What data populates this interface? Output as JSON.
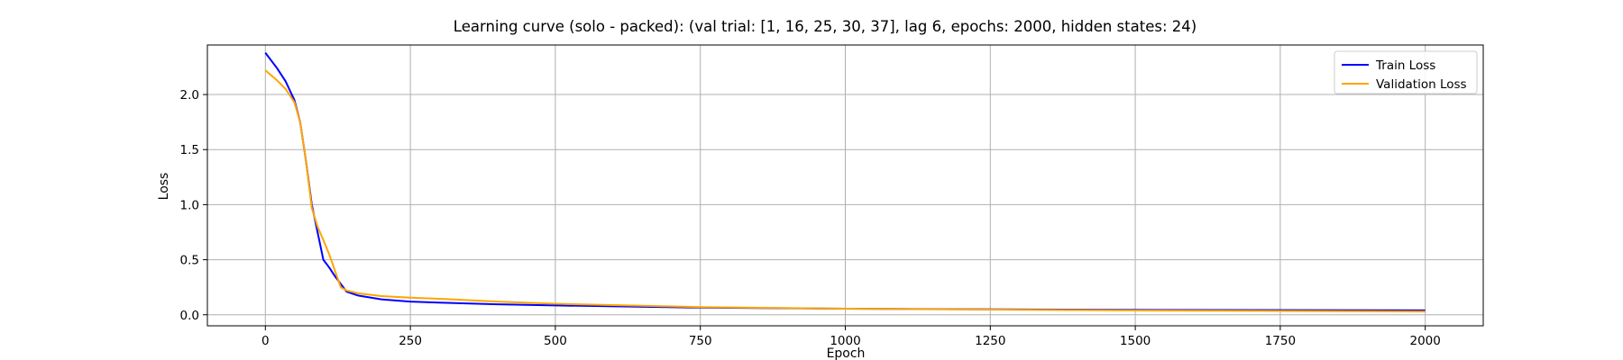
{
  "chart_data": {
    "type": "line",
    "title": "Learning curve (solo - packed): (val trial: [1, 16, 25, 30, 37], lag 6, epochs: 2000, hidden states: 24)",
    "xlabel": "Epoch",
    "ylabel": "Loss",
    "xlim": [
      -100,
      2100
    ],
    "ylim": [
      -0.1,
      2.45
    ],
    "xticks": [
      0,
      250,
      500,
      750,
      1000,
      1250,
      1500,
      1750,
      2000
    ],
    "xtick_labels": [
      "0",
      "250",
      "500",
      "750",
      "1000",
      "1250",
      "1500",
      "1750",
      "2000"
    ],
    "yticks": [
      0.0,
      0.5,
      1.0,
      1.5,
      2.0
    ],
    "ytick_labels": [
      "0.0",
      "0.5",
      "1.0",
      "1.5",
      "2.0"
    ],
    "grid": true,
    "legend_position": "top-right",
    "series": [
      {
        "name": "Train Loss",
        "color": "#0000ff",
        "x": [
          0,
          20,
          35,
          50,
          60,
          70,
          80,
          90,
          100,
          110,
          120,
          130,
          140,
          160,
          200,
          250,
          300,
          400,
          500,
          750,
          1000,
          1500,
          2000
        ],
        "y": [
          2.38,
          2.24,
          2.12,
          1.95,
          1.75,
          1.4,
          1.0,
          0.75,
          0.5,
          0.43,
          0.35,
          0.28,
          0.21,
          0.175,
          0.14,
          0.12,
          0.11,
          0.095,
          0.085,
          0.065,
          0.055,
          0.045,
          0.04
        ]
      },
      {
        "name": "Validation Loss",
        "color": "#ffa500",
        "x": [
          0,
          20,
          35,
          50,
          60,
          70,
          80,
          90,
          100,
          110,
          120,
          130,
          140,
          160,
          200,
          250,
          300,
          400,
          500,
          750,
          1000,
          1500,
          2000
        ],
        "y": [
          2.22,
          2.13,
          2.05,
          1.93,
          1.75,
          1.4,
          0.97,
          0.8,
          0.68,
          0.55,
          0.4,
          0.25,
          0.22,
          0.195,
          0.17,
          0.155,
          0.145,
          0.12,
          0.1,
          0.07,
          0.055,
          0.04,
          0.03
        ]
      }
    ]
  }
}
